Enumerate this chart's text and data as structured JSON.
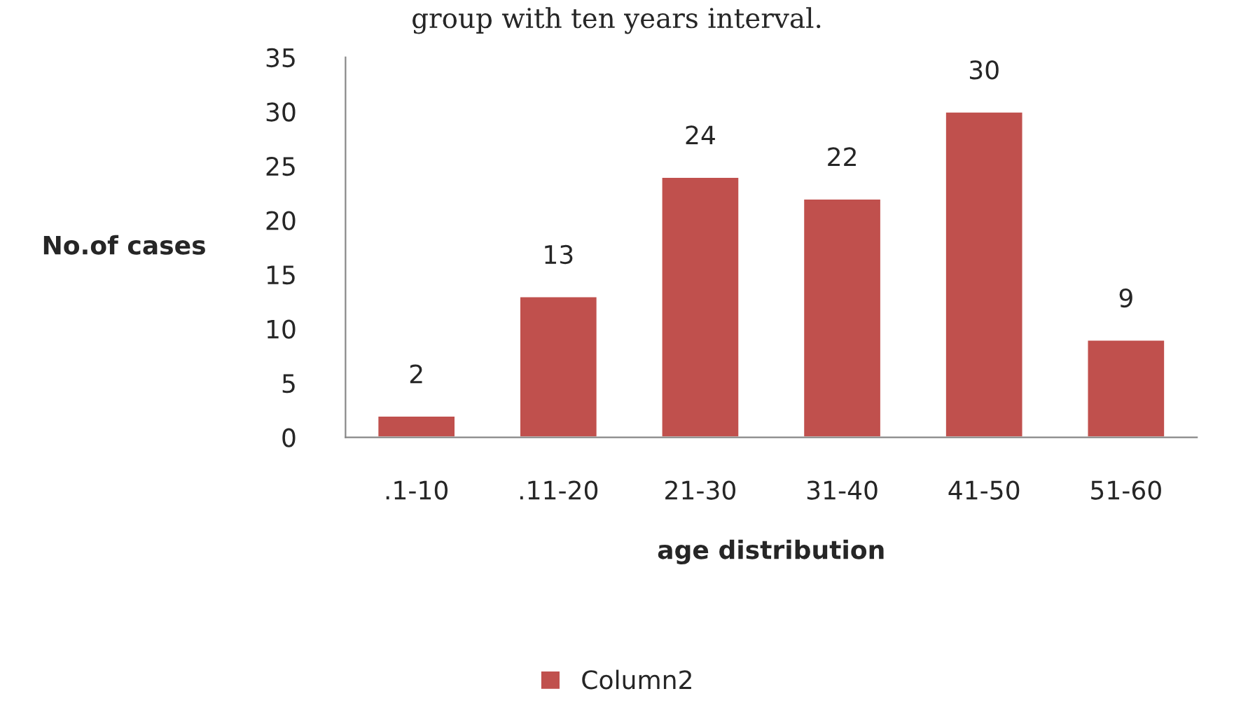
{
  "chart_data": {
    "type": "bar",
    "title": "group with ten years interval.",
    "xlabel": "age distribution",
    "ylabel": "No.of cases",
    "categories": [
      ".1-10",
      ".11-20",
      "21-30",
      "31-40",
      "41-50",
      "51-60"
    ],
    "series": [
      {
        "name": "Column2",
        "color": "#c0504d",
        "values": [
          2,
          13,
          24,
          22,
          30,
          9
        ]
      }
    ],
    "ylim": [
      0,
      35
    ],
    "yticks": [
      0,
      5,
      10,
      15,
      20,
      25,
      30,
      35
    ],
    "data_labels": true,
    "grid": false,
    "legend": "bottom"
  }
}
